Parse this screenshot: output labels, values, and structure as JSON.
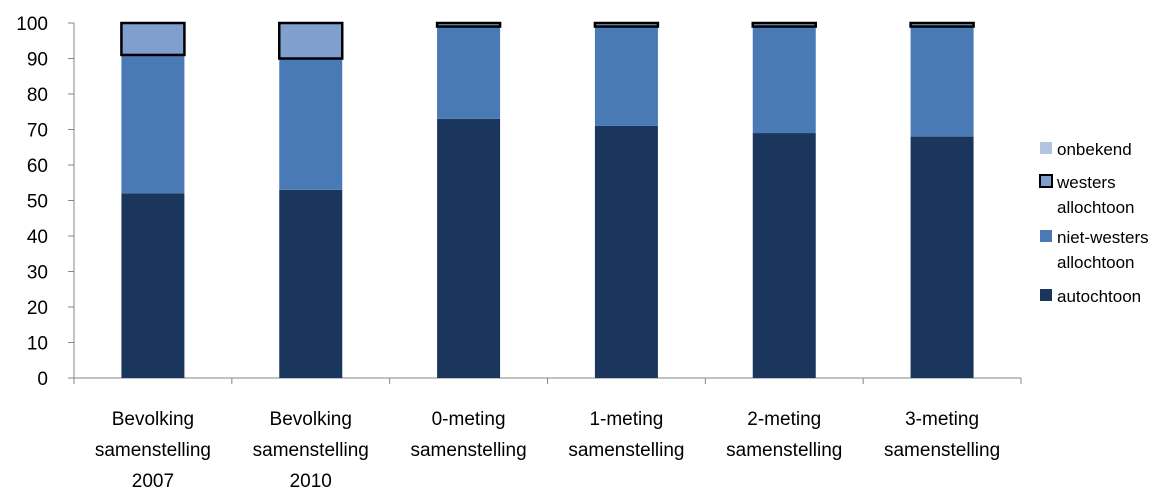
{
  "chart_data": {
    "type": "bar",
    "stacked": true,
    "categories": [
      [
        "Bevolking",
        "samenstelling",
        "2007"
      ],
      [
        "Bevolking",
        "samenstelling",
        "2010"
      ],
      [
        "0-meting",
        "samenstelling"
      ],
      [
        "1-meting",
        "samenstelling"
      ],
      [
        "2-meting",
        "samenstelling"
      ],
      [
        "3-meting",
        "samenstelling"
      ]
    ],
    "series": [
      {
        "name": "autochtoon",
        "values": [
          52,
          53,
          73,
          71,
          69,
          68
        ],
        "color": "#1b365d"
      },
      {
        "name": "niet-westers allochtoon",
        "values": [
          39,
          37,
          26,
          28,
          30,
          31
        ],
        "color": "#4a7ab5"
      },
      {
        "name": "westers allochtoon",
        "values": [
          9,
          10,
          1,
          1,
          1,
          1
        ],
        "color": "#7f9fcf",
        "outline": "#000000"
      },
      {
        "name": "onbekend",
        "values": [
          0,
          0,
          0,
          0,
          0,
          0
        ],
        "color": "#b4c4de"
      }
    ],
    "legend": [
      {
        "lines": [
          "onbekend"
        ],
        "color": "#b4c4de",
        "outline": false
      },
      {
        "lines": [
          "westers",
          "allochtoon"
        ],
        "color": "#7f9fcf",
        "outline": true
      },
      {
        "lines": [
          "niet-westers",
          "allochtoon"
        ],
        "color": "#4a7ab5",
        "outline": false
      },
      {
        "lines": [
          "autochtoon"
        ],
        "color": "#1b365d",
        "outline": false
      }
    ],
    "yticks": [
      0,
      10,
      20,
      30,
      40,
      50,
      60,
      70,
      80,
      90,
      100
    ],
    "ylim": [
      0,
      100
    ],
    "grid": false,
    "legend_position": "right"
  }
}
